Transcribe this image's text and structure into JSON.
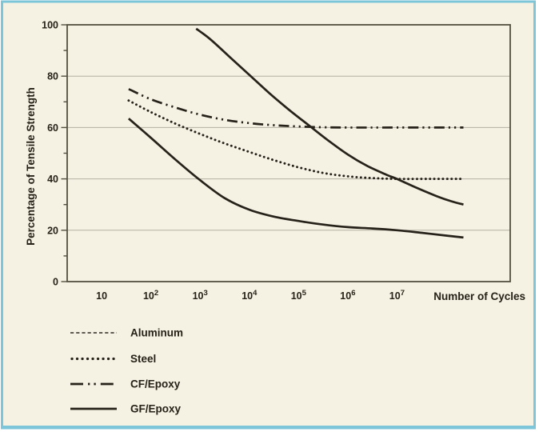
{
  "colors": {
    "background": "#f5f1e3",
    "frame_border": "#7dc6da",
    "curve": "#26221a",
    "grid_line": "#b3afa2",
    "plot_border": "#54503f",
    "text": "#272217"
  },
  "chart_data": {
    "type": "line",
    "title": "",
    "xlabel": "Number of Cycles",
    "ylabel": "Percentage of Tensile Strength",
    "x_scale": "log10",
    "x_axis_range_log10": [
      0.3,
      9.3
    ],
    "ylim": [
      0,
      100
    ],
    "grid": "horizontal-only",
    "gridlines_y": [
      20,
      40,
      60,
      80
    ],
    "y_ticks": [
      {
        "value": 0,
        "label": "0"
      },
      {
        "value": 20,
        "label": "20"
      },
      {
        "value": 40,
        "label": "40"
      },
      {
        "value": 60,
        "label": "60"
      },
      {
        "value": 80,
        "label": "80"
      },
      {
        "value": 100,
        "label": "100"
      }
    ],
    "y_minor_ticks": [
      10,
      30,
      50,
      70,
      90
    ],
    "x_ticks": [
      {
        "log10": 1,
        "base": "10",
        "exp": ""
      },
      {
        "log10": 2,
        "base": "10",
        "exp": "2"
      },
      {
        "log10": 3,
        "base": "10",
        "exp": "3"
      },
      {
        "log10": 4,
        "base": "10",
        "exp": "4"
      },
      {
        "log10": 5,
        "base": "10",
        "exp": "5"
      },
      {
        "log10": 6,
        "base": "10",
        "exp": "6"
      },
      {
        "log10": 7,
        "base": "10",
        "exp": "7"
      }
    ],
    "legend_position": "below-left",
    "series": [
      {
        "name": "Aluminum",
        "legend_line_style": "dashed",
        "plot_line_style": "solid",
        "points_log10cycles_percent": [
          [
            2.92,
            98.5
          ],
          [
            3.2,
            94.5
          ],
          [
            3.6,
            87.5
          ],
          [
            4.0,
            80.5
          ],
          [
            4.4,
            73.5
          ],
          [
            4.8,
            67
          ],
          [
            5.2,
            61
          ],
          [
            5.6,
            55
          ],
          [
            6.0,
            49.5
          ],
          [
            6.4,
            45
          ],
          [
            6.8,
            41.5
          ],
          [
            7.0,
            40
          ],
          [
            7.4,
            36.5
          ],
          [
            7.8,
            33.3
          ],
          [
            8.1,
            31.3
          ],
          [
            8.35,
            30
          ]
        ]
      },
      {
        "name": "Steel",
        "legend_line_style": "dotted",
        "plot_line_style": "dotted",
        "points_log10cycles_percent": [
          [
            1.55,
            70.5
          ],
          [
            2.0,
            66
          ],
          [
            2.5,
            61.5
          ],
          [
            3.0,
            57.5
          ],
          [
            3.5,
            53.8
          ],
          [
            4.0,
            50.5
          ],
          [
            4.5,
            47.3
          ],
          [
            5.0,
            44.5
          ],
          [
            5.5,
            42.3
          ],
          [
            6.0,
            41
          ],
          [
            6.5,
            40.3
          ],
          [
            7.0,
            40
          ],
          [
            7.7,
            40
          ],
          [
            8.35,
            40
          ]
        ]
      },
      {
        "name": "CF/Epoxy",
        "legend_line_style": "dash-dot-dot",
        "plot_line_style": "dash-dot-dot",
        "points_log10cycles_percent": [
          [
            1.55,
            75
          ],
          [
            2.0,
            71
          ],
          [
            2.5,
            67.8
          ],
          [
            3.0,
            65
          ],
          [
            3.5,
            63
          ],
          [
            4.0,
            61.7
          ],
          [
            4.5,
            60.9
          ],
          [
            5.0,
            60.4
          ],
          [
            5.5,
            60.1
          ],
          [
            6.0,
            60
          ],
          [
            7.0,
            60
          ],
          [
            8.35,
            60
          ]
        ]
      },
      {
        "name": "GF/Epoxy",
        "legend_line_style": "solid",
        "plot_line_style": "solid",
        "points_log10cycles_percent": [
          [
            1.55,
            63.5
          ],
          [
            2.0,
            56
          ],
          [
            2.5,
            47.5
          ],
          [
            3.0,
            39.5
          ],
          [
            3.5,
            32.5
          ],
          [
            4.0,
            28
          ],
          [
            4.5,
            25.3
          ],
          [
            5.0,
            23.6
          ],
          [
            5.5,
            22.2
          ],
          [
            6.0,
            21.2
          ],
          [
            6.5,
            20.7
          ],
          [
            7.0,
            20
          ],
          [
            7.5,
            19
          ],
          [
            8.0,
            17.9
          ],
          [
            8.35,
            17.2
          ]
        ]
      }
    ]
  }
}
